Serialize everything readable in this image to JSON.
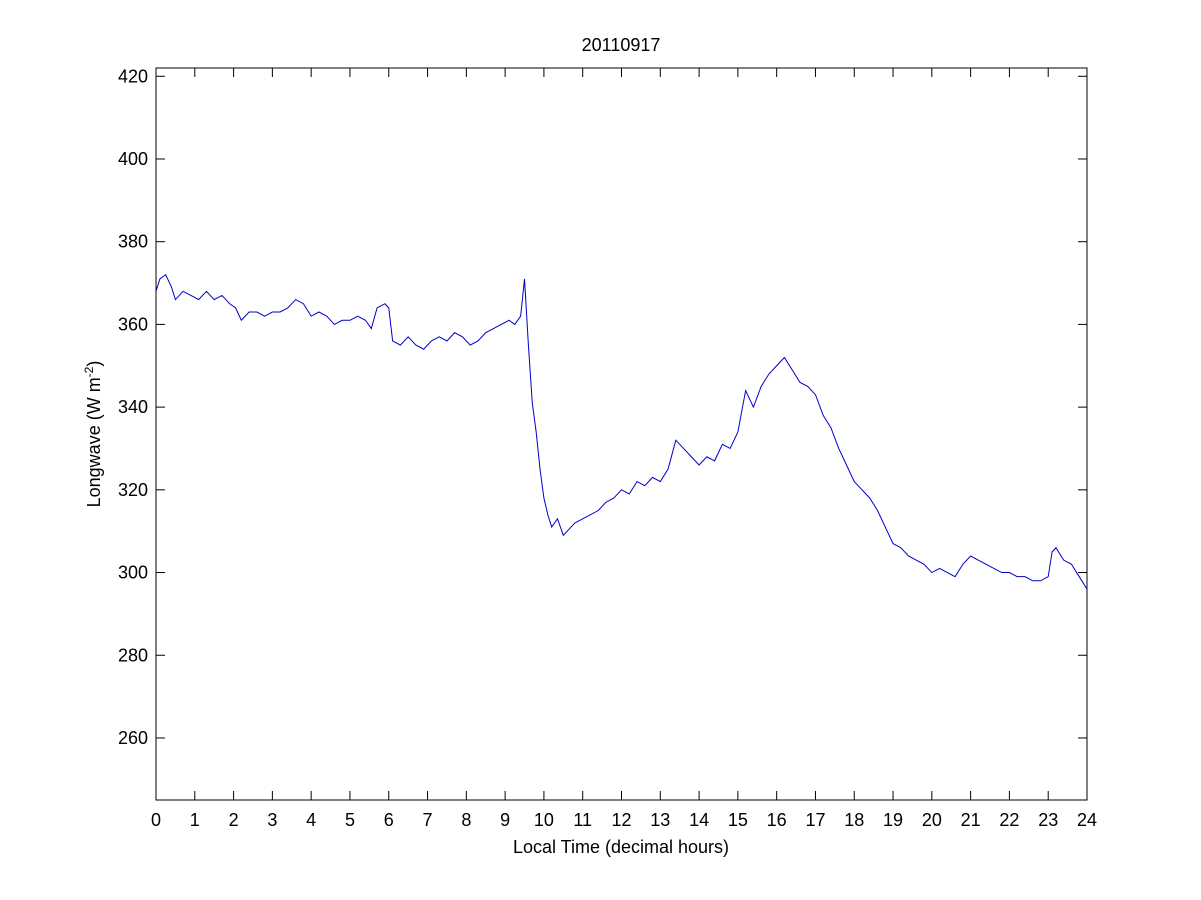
{
  "chart_data": {
    "type": "line",
    "title": "20110917",
    "xlabel": "Local Time (decimal hours)",
    "ylabel_base": "Longwave (W m",
    "ylabel_exp": "-2",
    "ylabel_close": ")",
    "xlim": [
      0,
      24
    ],
    "ylim": [
      245,
      422
    ],
    "x_ticks": [
      0,
      1,
      2,
      3,
      4,
      5,
      6,
      7,
      8,
      9,
      10,
      11,
      12,
      13,
      14,
      15,
      16,
      17,
      18,
      19,
      20,
      21,
      22,
      23,
      24
    ],
    "y_ticks": [
      260,
      280,
      300,
      320,
      340,
      360,
      380,
      400,
      420
    ],
    "grid": false,
    "line_color": "#0000cc",
    "series": [
      {
        "x": [
          0,
          0.1,
          0.25,
          0.4,
          0.5,
          0.7,
          0.9,
          1.1,
          1.3,
          1.5,
          1.7,
          1.9,
          2.05,
          2.2,
          2.4,
          2.6,
          2.8,
          3.0,
          3.2,
          3.4,
          3.6,
          3.8,
          4.0,
          4.2,
          4.4,
          4.6,
          4.8,
          5.0,
          5.2,
          5.4,
          5.55,
          5.7,
          5.9,
          6.0,
          6.1,
          6.3,
          6.5,
          6.7,
          6.9,
          7.1,
          7.3,
          7.5,
          7.7,
          7.9,
          8.1,
          8.3,
          8.5,
          8.7,
          8.9,
          9.1,
          9.25,
          9.4,
          9.5,
          9.6,
          9.7,
          9.8,
          9.9,
          10.0,
          10.1,
          10.2,
          10.35,
          10.5,
          10.6,
          10.8,
          11.0,
          11.2,
          11.4,
          11.6,
          11.8,
          12.0,
          12.2,
          12.4,
          12.6,
          12.8,
          13.0,
          13.2,
          13.4,
          13.6,
          13.8,
          14.0,
          14.2,
          14.4,
          14.6,
          14.8,
          15.0,
          15.2,
          15.4,
          15.6,
          15.8,
          16.0,
          16.2,
          16.4,
          16.6,
          16.8,
          17.0,
          17.2,
          17.4,
          17.6,
          17.8,
          18.0,
          18.2,
          18.4,
          18.6,
          18.8,
          19.0,
          19.2,
          19.4,
          19.6,
          19.8,
          20.0,
          20.2,
          20.4,
          20.6,
          20.8,
          21.0,
          21.2,
          21.4,
          21.6,
          21.8,
          22.0,
          22.2,
          22.4,
          22.6,
          22.8,
          23.0,
          23.1,
          23.2,
          23.4,
          23.6,
          23.8,
          24.0
        ],
        "y": [
          368,
          371,
          372,
          369,
          366,
          368,
          367,
          366,
          368,
          366,
          367,
          365,
          364,
          361,
          363,
          363,
          362,
          363,
          363,
          364,
          366,
          365,
          362,
          363,
          362,
          360,
          361,
          361,
          362,
          361,
          359,
          364,
          365,
          364,
          356,
          355,
          357,
          355,
          354,
          356,
          357,
          356,
          358,
          357,
          355,
          356,
          358,
          359,
          360,
          361,
          360,
          362,
          371,
          355,
          341,
          334,
          325,
          318,
          314,
          311,
          313,
          309,
          310,
          312,
          313,
          314,
          315,
          317,
          318,
          320,
          319,
          322,
          321,
          323,
          322,
          325,
          332,
          330,
          328,
          326,
          328,
          327,
          331,
          330,
          334,
          344,
          340,
          345,
          348,
          350,
          352,
          349,
          346,
          345,
          343,
          338,
          335,
          330,
          326,
          322,
          320,
          318,
          315,
          311,
          307,
          306,
          304,
          303,
          302,
          300,
          301,
          300,
          299,
          302,
          304,
          303,
          302,
          301,
          300,
          300,
          299,
          299,
          298,
          298,
          299,
          305,
          306,
          303,
          302,
          299,
          296
        ]
      }
    ]
  }
}
